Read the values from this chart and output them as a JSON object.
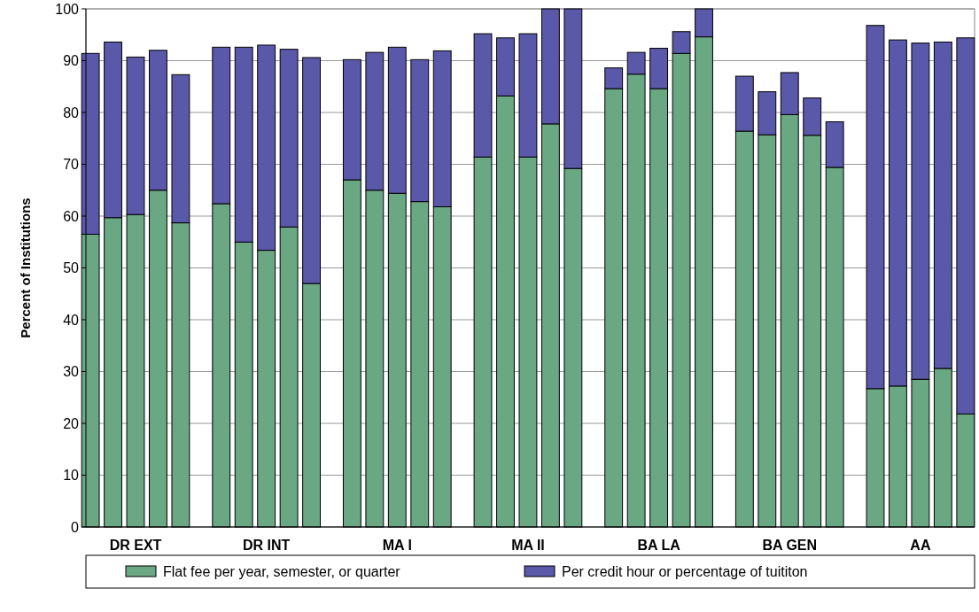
{
  "chart_data": {
    "type": "bar",
    "stacked": true,
    "ylabel": "Percent of Institutions",
    "categories": [
      null,
      null,
      "DR EXT",
      null,
      null,
      null,
      null,
      "DR INT",
      null,
      null,
      null,
      null,
      "MA I",
      null,
      null,
      null,
      null,
      "MA II",
      null,
      null,
      null,
      null,
      "BA LA",
      null,
      null,
      null,
      null,
      "BA GEN",
      null,
      null,
      null,
      null,
      "AA",
      null,
      null
    ],
    "series": [
      {
        "name": "Flat fee per year, semester, or quarter",
        "color": "#6aa884",
        "values": [
          56.5,
          59.7,
          60.3,
          65,
          58.7,
          62.4,
          55,
          53.4,
          57.9,
          47,
          67,
          65,
          64.4,
          62.8,
          61.8,
          71.4,
          83.2,
          71.4,
          77.8,
          69.2,
          84.6,
          87.4,
          84.6,
          91.4,
          94.6,
          76.4,
          75.7,
          79.6,
          75.6,
          69.4,
          26.7,
          27.2,
          28.5,
          30.6,
          21.8
        ]
      },
      {
        "name": "Per credit hour or percentage of tuititon",
        "color": "#5a58a8",
        "values": [
          34.9,
          33.9,
          30.4,
          27,
          28.6,
          30.2,
          37.6,
          39.6,
          34.3,
          43.6,
          23.2,
          26.6,
          28.2,
          27.4,
          30.1,
          23.8,
          11.2,
          23.8,
          22.2,
          30.8,
          4,
          4.2,
          7.8,
          4.2,
          5.4,
          10.6,
          8.3,
          8.1,
          7.2,
          8.8,
          70.1,
          66.8,
          64.9,
          63,
          72.6
        ]
      }
    ],
    "ylim": [
      0,
      100
    ],
    "yticks": [
      0,
      10,
      20,
      30,
      40,
      50,
      60,
      70,
      80,
      90,
      100
    ],
    "grid": "y",
    "legend": "bottom"
  }
}
